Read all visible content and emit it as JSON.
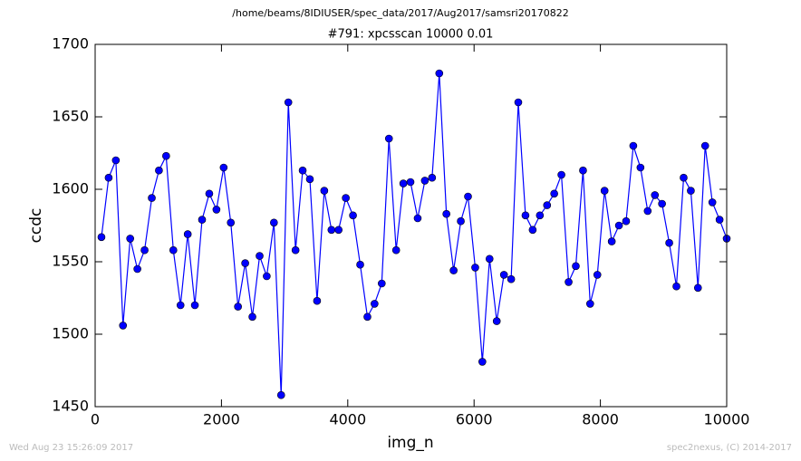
{
  "suptitle": "/home/beams/8IDIUSER/spec_data/2017/Aug2017/samsri20170822",
  "footer_left": "Wed Aug 23 15:26:09 2017",
  "footer_right": "spec2nexus, (C) 2014-2017",
  "chart_data": {
    "type": "line",
    "title": "#791: xpcsscan 10000 0.01",
    "x_label": "img_n",
    "y_label": "ccdc",
    "xlim": [
      0,
      10000
    ],
    "ylim": [
      1450,
      1700
    ],
    "xticks": [
      0,
      2000,
      4000,
      6000,
      8000,
      10000
    ],
    "yticks": [
      1450,
      1500,
      1550,
      1600,
      1650,
      1700
    ],
    "x": [
      100,
      214,
      328,
      441,
      555,
      669,
      783,
      897,
      1010,
      1124,
      1238,
      1352,
      1466,
      1579,
      1693,
      1807,
      1921,
      2035,
      2148,
      2262,
      2376,
      2490,
      2604,
      2717,
      2831,
      2945,
      3059,
      3173,
      3286,
      3400,
      3514,
      3628,
      3742,
      3855,
      3969,
      4083,
      4197,
      4311,
      4424,
      4538,
      4652,
      4766,
      4880,
      4993,
      5107,
      5221,
      5335,
      5449,
      5562,
      5676,
      5790,
      5904,
      6018,
      6131,
      6245,
      6359,
      6473,
      6587,
      6700,
      6814,
      6928,
      7042,
      7156,
      7269,
      7383,
      7497,
      7611,
      7725,
      7838,
      7952,
      8066,
      8180,
      8294,
      8407,
      8521,
      8635,
      8749,
      8863,
      8976,
      9090,
      9204,
      9318,
      9432,
      9545,
      9659,
      9773,
      9887,
      10000
    ],
    "series": [
      {
        "color": "#0000ff",
        "values": [
          1567,
          1608,
          1620,
          1506,
          1566,
          1545,
          1558,
          1594,
          1613,
          1623,
          1558,
          1520,
          1569,
          1520,
          1579,
          1597,
          1586,
          1615,
          1577,
          1519,
          1549,
          1512,
          1554,
          1540,
          1577,
          1458,
          1660,
          1558,
          1613,
          1607,
          1523,
          1599,
          1572,
          1572,
          1594,
          1582,
          1548,
          1512,
          1521,
          1535,
          1635,
          1558,
          1604,
          1605,
          1580,
          1606,
          1608,
          1680,
          1583,
          1544,
          1578,
          1595,
          1546,
          1481,
          1552,
          1509,
          1541,
          1538,
          1660,
          1582,
          1572,
          1582,
          1589,
          1597,
          1610,
          1536,
          1547,
          1613,
          1521,
          1541,
          1599,
          1564,
          1575,
          1578,
          1630,
          1615,
          1585,
          1596,
          1590,
          1563,
          1533,
          1608,
          1599,
          1532,
          1630,
          1591,
          1579,
          1566
        ]
      }
    ]
  }
}
